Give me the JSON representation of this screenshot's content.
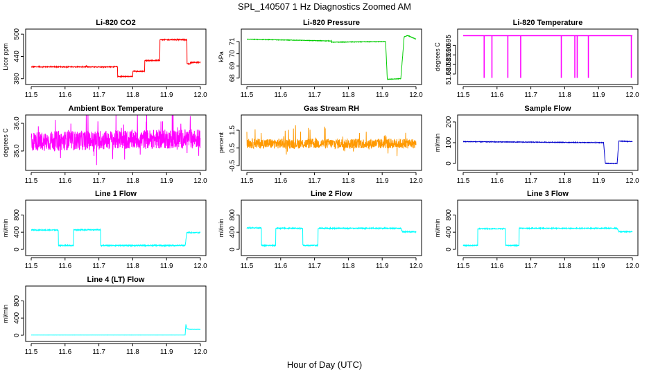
{
  "figure": {
    "title": "SPL_140507  1 Hz Diagnostics Zoomed AM",
    "xlabel": "Hour of Day (UTC)"
  },
  "chart_data": [
    {
      "type": "line",
      "title": "Li-820 CO2",
      "ylabel": "Licor ppm",
      "color": "#ff0000",
      "xlim": [
        11.5,
        12.0
      ],
      "ylim": [
        372,
        506
      ],
      "xticks": [
        "11.5",
        "11.6",
        "11.7",
        "11.8",
        "11.9",
        "12.0"
      ],
      "yticks": [
        "380",
        "440",
        "500"
      ],
      "series": [
        {
          "x": [
            11.5,
            11.755,
            11.755,
            11.8,
            11.8,
            11.835,
            11.835,
            11.88,
            11.88,
            11.96,
            11.96,
            11.97,
            11.97,
            12.0
          ],
          "y": [
            412,
            412,
            386,
            386,
            400,
            400,
            429,
            429,
            485,
            485,
            420,
            420,
            424,
            424
          ],
          "noise": 1.2,
          "spikes": 0.02
        }
      ]
    },
    {
      "type": "line",
      "title": "Li-820 Pressure",
      "ylabel": "kPa",
      "color": "#00cc00",
      "xlim": [
        11.5,
        12.0
      ],
      "ylim": [
        67.7,
        71.8
      ],
      "xticks": [
        "11.5",
        "11.6",
        "11.7",
        "11.8",
        "11.9",
        "12.0"
      ],
      "yticks": [
        "68",
        "69",
        "70",
        "71"
      ],
      "series": [
        {
          "x": [
            11.5,
            11.75,
            11.75,
            11.91,
            11.915,
            11.915,
            11.955,
            11.965,
            11.975,
            12.0
          ],
          "y": [
            71.2,
            71.05,
            70.95,
            71.0,
            68.0,
            67.9,
            67.95,
            71.4,
            71.5,
            71.2
          ],
          "noise": 0.02,
          "spikes": 0
        }
      ]
    },
    {
      "type": "line",
      "title": "Li-820 Temperature",
      "ylabel": "degrees C",
      "color": "#ff00ff",
      "xlim": [
        11.5,
        12.0
      ],
      "ylim": [
        51.676,
        51.702
      ],
      "xticks": [
        "11.5",
        "11.6",
        "11.7",
        "11.8",
        "11.9",
        "12.0"
      ],
      "yticks": [
        "51.680",
        "51.685",
        "51.690",
        "51.695"
      ],
      "series": [
        {
          "x": [
            11.5,
            12.0
          ],
          "y": [
            51.7,
            51.7
          ],
          "noise": 0,
          "spikes": 0,
          "dips": [
            11.562,
            11.585,
            11.632,
            11.67,
            11.79,
            11.83,
            11.837,
            11.87,
            11.997
          ],
          "dip_to": 51.678
        }
      ]
    },
    {
      "type": "line",
      "title": "Ambient Box Temperature",
      "ylabel": "degrees C",
      "color": "#ff00ff",
      "xlim": [
        11.5,
        12.0
      ],
      "ylim": [
        34.4,
        36.2
      ],
      "xticks": [
        "11.5",
        "11.6",
        "11.7",
        "11.8",
        "11.9",
        "12.0"
      ],
      "yticks": [
        "35.0",
        "36.0"
      ],
      "series": [
        {
          "x": [
            11.5,
            12.0
          ],
          "y": [
            35.35,
            35.45
          ],
          "noise": 0.35,
          "spikes": 0.05
        }
      ]
    },
    {
      "type": "line",
      "title": "Gas Stream RH",
      "ylabel": "percent",
      "color": "#ff9900",
      "xlim": [
        11.5,
        12.0
      ],
      "ylim": [
        -0.6,
        2.2
      ],
      "xticks": [
        "11.5",
        "11.6",
        "11.7",
        "11.8",
        "11.9",
        "12.0"
      ],
      "yticks": [
        "-0.5",
        "0.5",
        "1.5"
      ],
      "series": [
        {
          "x": [
            11.5,
            12.0
          ],
          "y": [
            0.75,
            0.75
          ],
          "noise": 0.28,
          "spikes": 0.06
        }
      ]
    },
    {
      "type": "line",
      "title": "Sample Flow",
      "ylabel": "ml/min",
      "color": "#0000cc",
      "xlim": [
        11.5,
        12.0
      ],
      "ylim": [
        -20,
        220
      ],
      "xticks": [
        "11.5",
        "11.6",
        "11.7",
        "11.8",
        "11.9",
        "12.0"
      ],
      "yticks": [
        "0",
        "100",
        "200"
      ],
      "series": [
        {
          "x": [
            11.5,
            11.915,
            11.92,
            11.955,
            11.96,
            12.0
          ],
          "y": [
            105,
            100,
            0,
            0,
            108,
            105
          ],
          "noise": 1.5,
          "spikes": 0
        }
      ]
    },
    {
      "type": "line",
      "title": "Line 1 Flow",
      "ylabel": "ml/min",
      "color": "#00ffff",
      "xlim": [
        11.5,
        12.0
      ],
      "ylim": [
        -80,
        1080
      ],
      "xticks": [
        "11.5",
        "11.6",
        "11.7",
        "11.8",
        "11.9",
        "12.0"
      ],
      "yticks": [
        "0",
        "400",
        "800"
      ],
      "series": [
        {
          "x": [
            11.5,
            11.58,
            11.58,
            11.625,
            11.625,
            11.705,
            11.705,
            11.955,
            11.96,
            12.0
          ],
          "y": [
            450,
            450,
            90,
            90,
            455,
            455,
            90,
            90,
            390,
            390
          ],
          "noise": 12,
          "spikes": 0
        }
      ]
    },
    {
      "type": "line",
      "title": "Line 2 Flow",
      "ylabel": "ml/min",
      "color": "#00ffff",
      "xlim": [
        11.5,
        12.0
      ],
      "ylim": [
        -80,
        1080
      ],
      "xticks": [
        "11.5",
        "11.6",
        "11.7",
        "11.8",
        "11.9",
        "12.0"
      ],
      "yticks": [
        "0",
        "400",
        "800"
      ],
      "series": [
        {
          "x": [
            11.5,
            11.543,
            11.543,
            11.585,
            11.585,
            11.665,
            11.665,
            11.71,
            11.71,
            11.955,
            11.96,
            12.0
          ],
          "y": [
            500,
            500,
            90,
            90,
            490,
            490,
            90,
            90,
            490,
            490,
            410,
            410
          ],
          "noise": 12,
          "spikes": 0
        }
      ]
    },
    {
      "type": "line",
      "title": "Line 3 Flow",
      "ylabel": "ml/min",
      "color": "#00ffff",
      "xlim": [
        11.5,
        12.0
      ],
      "ylim": [
        -80,
        1080
      ],
      "xticks": [
        "11.5",
        "11.6",
        "11.7",
        "11.8",
        "11.9",
        "12.0"
      ],
      "yticks": [
        "0",
        "400",
        "800"
      ],
      "series": [
        {
          "x": [
            11.5,
            11.543,
            11.543,
            11.625,
            11.625,
            11.665,
            11.665,
            11.955,
            11.96,
            12.0
          ],
          "y": [
            90,
            90,
            480,
            480,
            90,
            90,
            490,
            490,
            410,
            410
          ],
          "noise": 10,
          "spikes": 0
        }
      ]
    },
    {
      "type": "line",
      "title": "Line 4 (LT) Flow",
      "ylabel": "ml/min",
      "color": "#00ffff",
      "xlim": [
        11.5,
        12.0
      ],
      "ylim": [
        -80,
        1080
      ],
      "xticks": [
        "11.5",
        "11.6",
        "11.7",
        "11.8",
        "11.9",
        "12.0"
      ],
      "yticks": [
        "0",
        "400",
        "800"
      ],
      "series": [
        {
          "x": [
            11.5,
            11.955,
            11.957,
            11.96,
            11.97,
            12.0
          ],
          "y": [
            5,
            5,
            260,
            150,
            140,
            140
          ],
          "noise": 1,
          "spikes": 0
        }
      ]
    }
  ]
}
